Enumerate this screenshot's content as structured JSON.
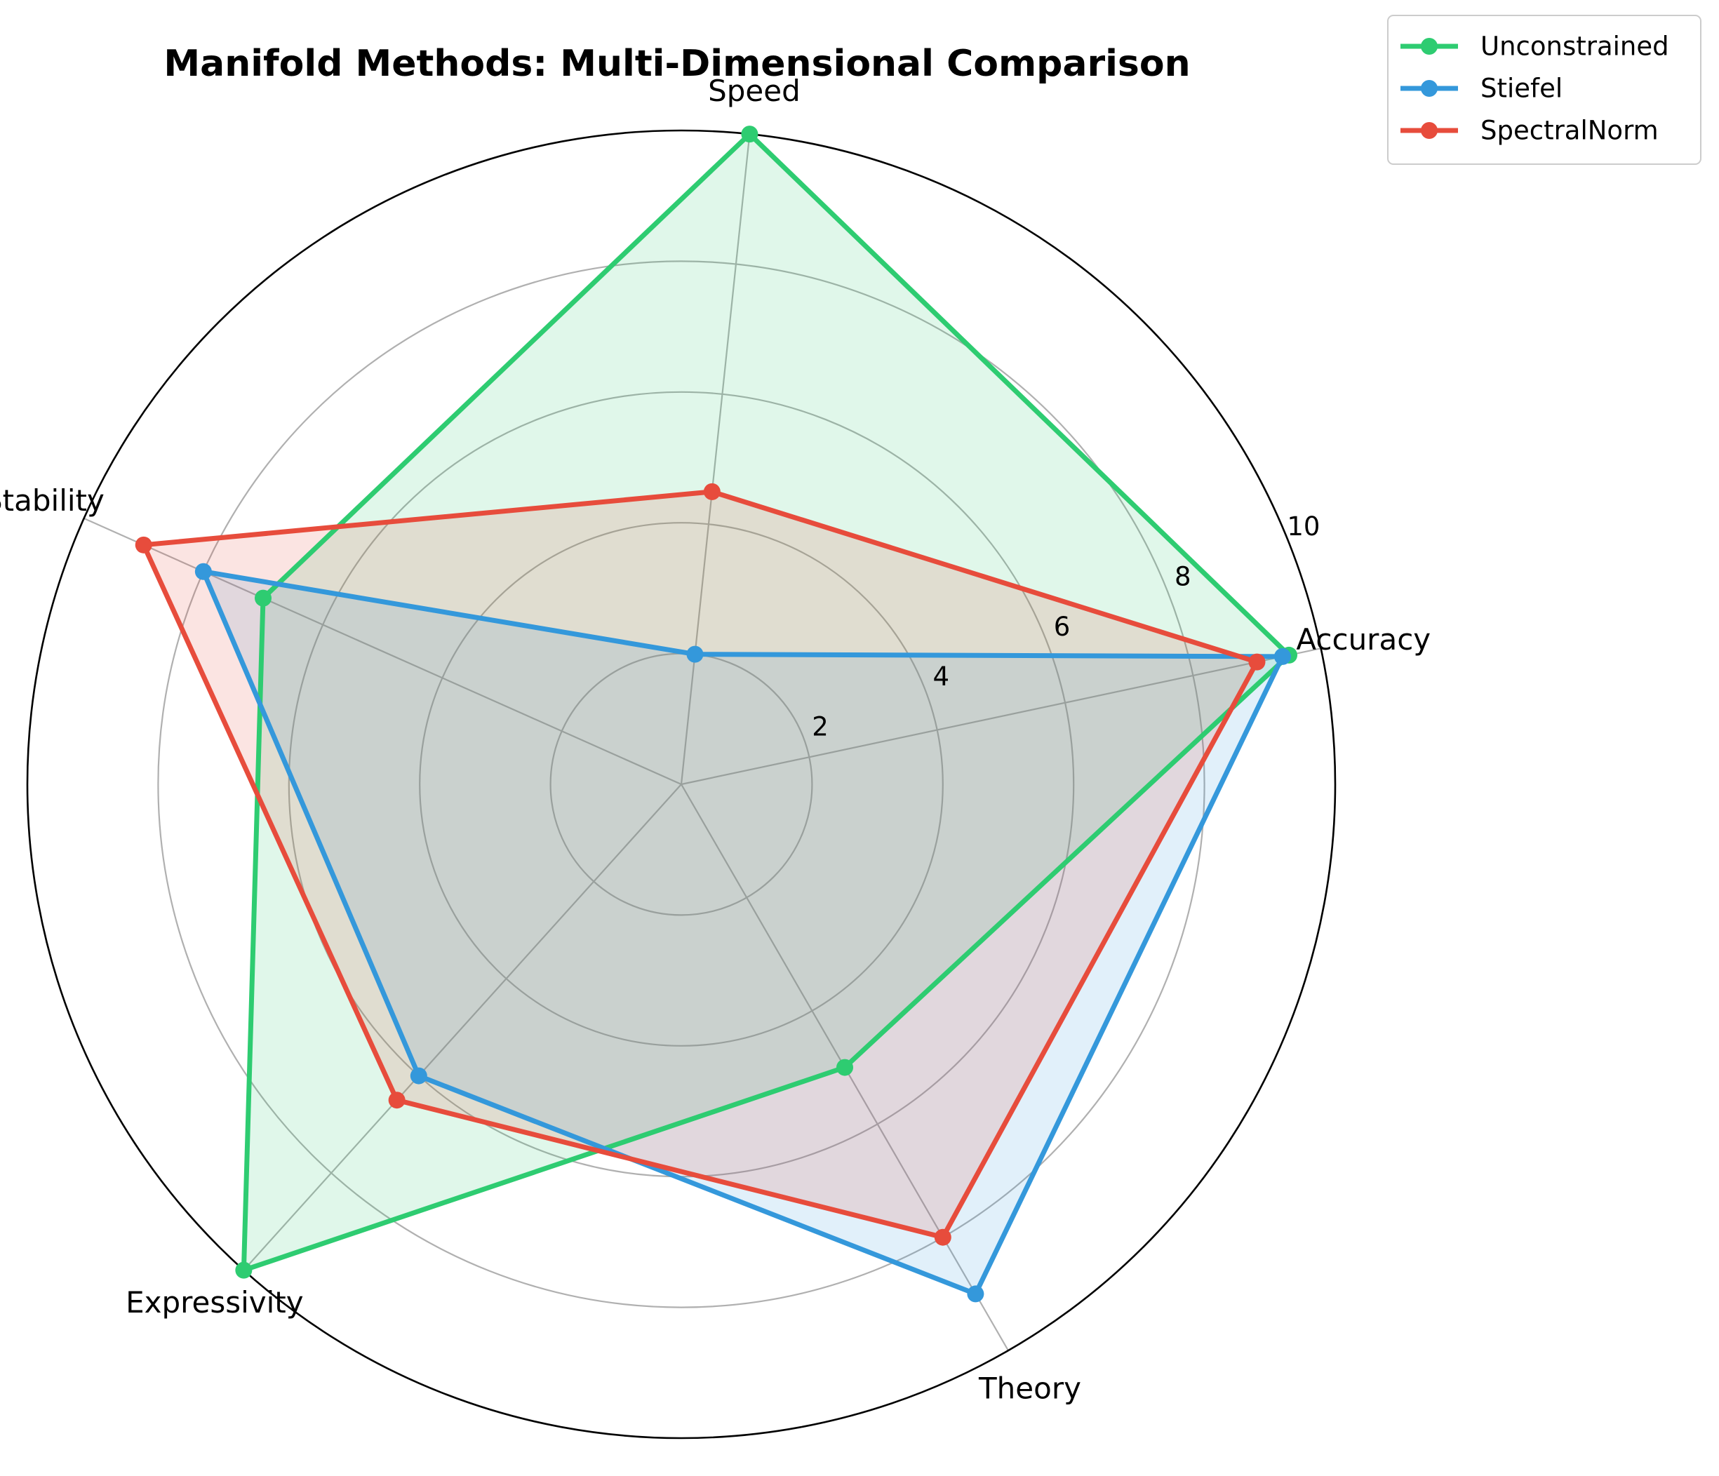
{
  "chart_data": {
    "type": "radar",
    "title": "Manifold Methods: Multi-Dimensional Comparison",
    "categories": [
      "Accuracy",
      "Speed",
      "Stability",
      "Expressivity",
      "Theory"
    ],
    "rlim": [
      0,
      10
    ],
    "rticks": [
      2,
      4,
      6,
      8,
      10
    ],
    "grid": true,
    "legend_position": "top-right",
    "series": [
      {
        "name": "Unconstrained",
        "values": [
          9.5,
          10.0,
          7.0,
          10.0,
          5.0
        ],
        "color": "#2ecc71"
      },
      {
        "name": "Stiefel",
        "values": [
          9.4,
          2.0,
          8.0,
          6.0,
          9.0
        ],
        "color": "#3498db"
      },
      {
        "name": "SpectralNorm",
        "values": [
          9.0,
          4.5,
          9.0,
          6.5,
          8.0
        ],
        "color": "#e74c3c"
      }
    ]
  }
}
